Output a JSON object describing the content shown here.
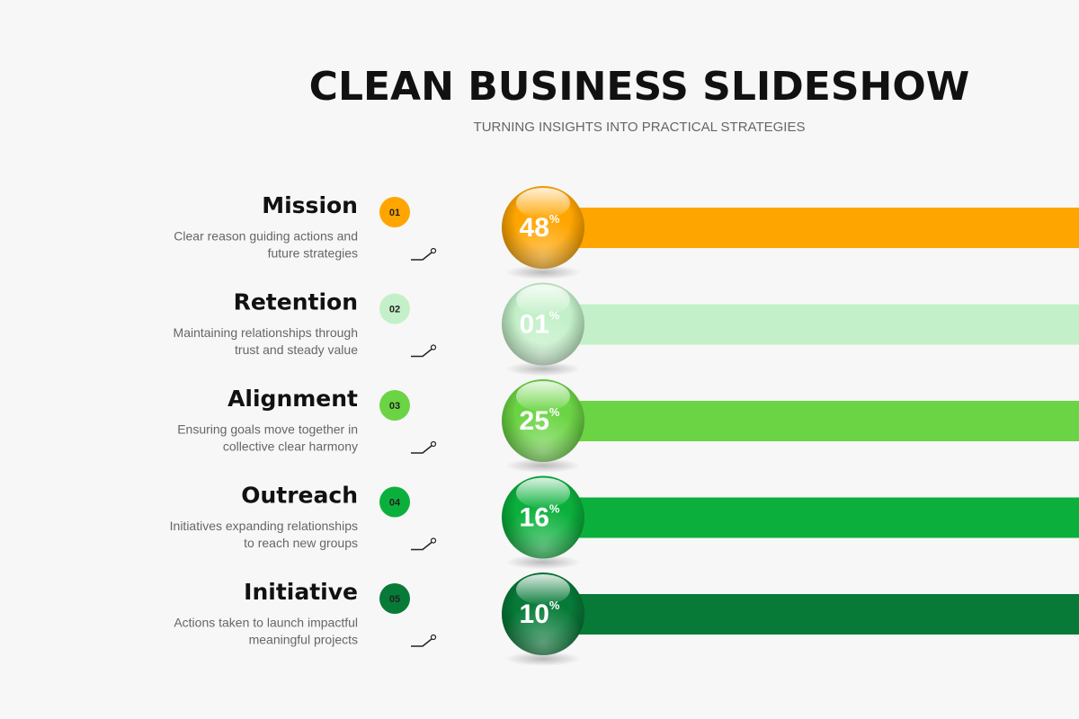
{
  "header": {
    "title": "CLEAN BUSINESS SLIDESHOW",
    "subtitle": "TURNING INSIGHTS INTO PRACTICAL STRATEGIES"
  },
  "rows": [
    {
      "number": "01",
      "heading": "Mission",
      "description": [
        "Clear reason guiding actions and",
        "future strategies"
      ],
      "percent": "48",
      "unit": "%",
      "color": "#ffa500"
    },
    {
      "number": "02",
      "heading": "Retention",
      "description": [
        "Maintaining relationships through",
        "trust and steady value"
      ],
      "percent": "01",
      "unit": "%",
      "color": "#c3f0c8"
    },
    {
      "number": "03",
      "heading": "Alignment",
      "description": [
        "Ensuring goals move together in",
        "collective clear harmony"
      ],
      "percent": "25",
      "unit": "%",
      "color": "#6bd444"
    },
    {
      "number": "04",
      "heading": "Outreach",
      "description": [
        "Initiatives expanding relationships",
        "to reach new groups"
      ],
      "percent": "16",
      "unit": "%",
      "color": "#0bb03c"
    },
    {
      "number": "05",
      "heading": "Initiative",
      "description": [
        "Actions taken to launch impactful",
        "meaningful projects"
      ],
      "percent": "10",
      "unit": "%",
      "color": "#077a38"
    }
  ]
}
